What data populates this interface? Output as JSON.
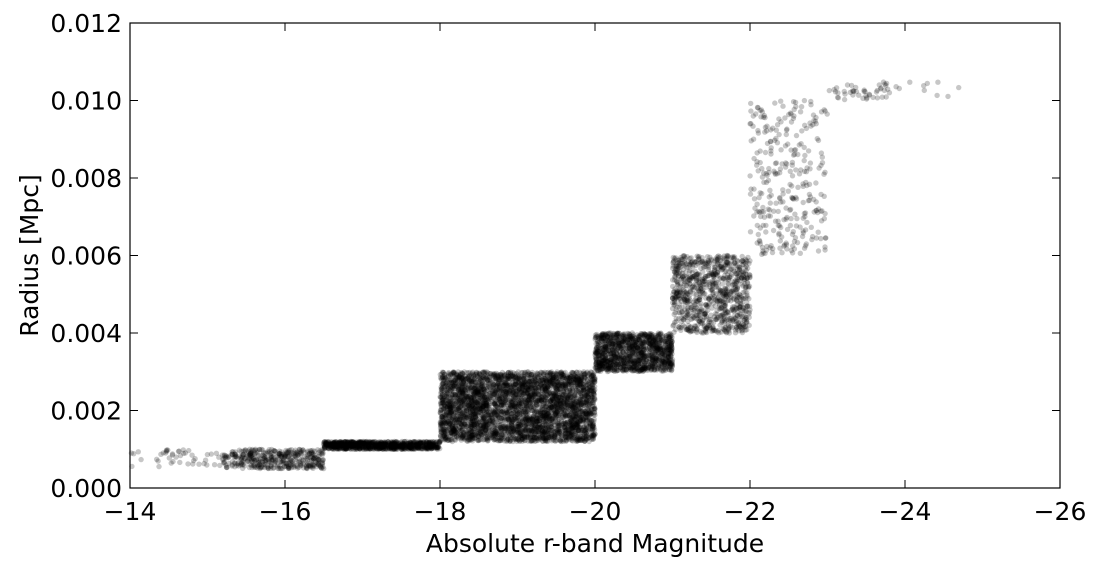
{
  "chart_data": {
    "type": "scatter",
    "title": "",
    "xlabel": "Absolute r-band Magnitude",
    "ylabel": "Radius [Mpc]",
    "xlim": [
      -14,
      -26
    ],
    "ylim": [
      0.0,
      0.012
    ],
    "x_reversed": true,
    "grid": false,
    "legend": "none",
    "marker_color": "#000000",
    "marker_alpha": 0.22,
    "x_ticks": [
      -14,
      -16,
      -18,
      -20,
      -22,
      -24,
      -26
    ],
    "x_tick_labels": [
      "−14",
      "−16",
      "−18",
      "−20",
      "−22",
      "−24",
      "−26"
    ],
    "y_ticks": [
      0.0,
      0.002,
      0.004,
      0.006,
      0.008,
      0.01,
      0.012
    ],
    "y_tick_labels": [
      "0.000",
      "0.002",
      "0.004",
      "0.006",
      "0.008",
      "0.010",
      "0.012"
    ],
    "point_groups": [
      {
        "mag_range": [
          -14.0,
          -15.2
        ],
        "radius_range": [
          0.00055,
          0.001
        ],
        "n_points": 45
      },
      {
        "mag_range": [
          -15.2,
          -16.5
        ],
        "radius_range": [
          0.0005,
          0.001
        ],
        "n_points": 420
      },
      {
        "mag_range": [
          -16.5,
          -18.0
        ],
        "radius_range": [
          0.001,
          0.0012
        ],
        "n_points": 900
      },
      {
        "mag_range": [
          -18.0,
          -20.0
        ],
        "radius_range": [
          0.0012,
          0.003
        ],
        "n_points": 3800
      },
      {
        "mag_range": [
          -20.0,
          -21.0
        ],
        "radius_range": [
          0.003,
          0.004
        ],
        "n_points": 1200
      },
      {
        "mag_range": [
          -21.0,
          -22.0
        ],
        "radius_range": [
          0.004,
          0.006
        ],
        "n_points": 900
      },
      {
        "mag_range": [
          -22.0,
          -23.0
        ],
        "radius_range": [
          0.006,
          0.01
        ],
        "n_points": 300
      },
      {
        "mag_range": [
          -23.0,
          -23.8
        ],
        "radius_range": [
          0.01,
          0.0105
        ],
        "n_points": 45
      },
      {
        "mag_range": [
          -23.8,
          -24.7
        ],
        "radius_range": [
          0.0101,
          0.0105
        ],
        "n_points": 10
      }
    ]
  }
}
